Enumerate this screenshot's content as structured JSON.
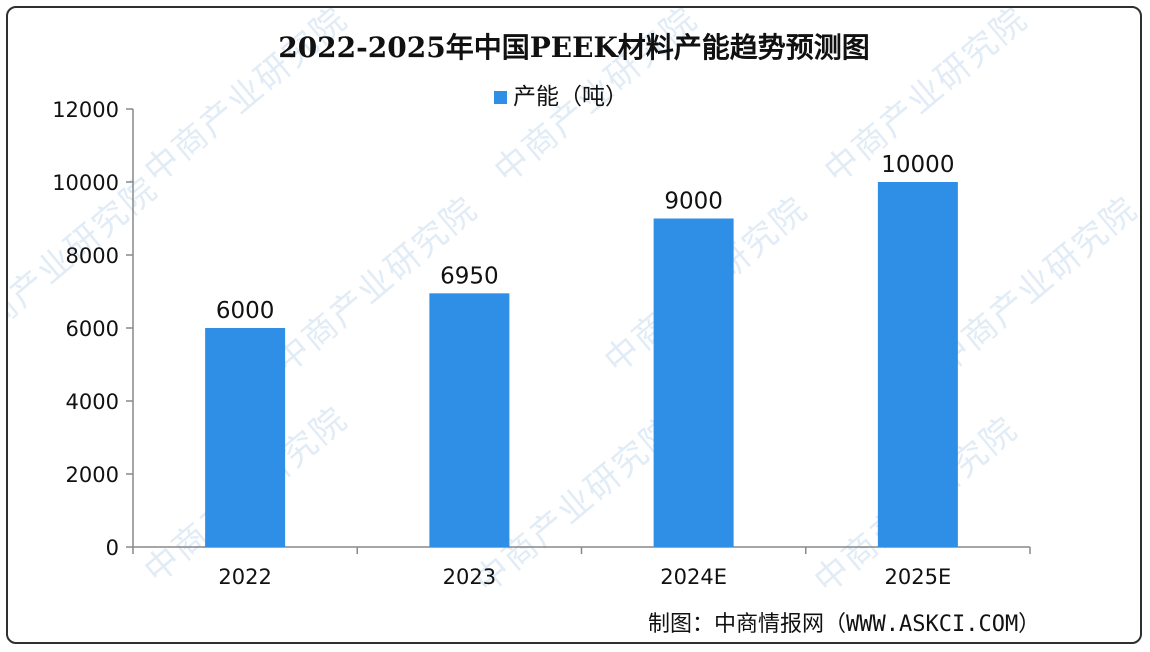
{
  "chart_data": {
    "type": "bar",
    "title": "2022-2025年中国PEEK材料产能趋势预测图",
    "categories": [
      "2022",
      "2023",
      "2024E",
      "2025E"
    ],
    "series": [
      {
        "name": "产能（吨）",
        "values": [
          6000,
          6950,
          9000,
          10000
        ],
        "color": "#2f8fe6"
      }
    ],
    "data_labels": [
      "6000",
      "6950",
      "9000",
      "10000"
    ],
    "ylim": [
      0,
      12000
    ],
    "yticks": [
      0,
      2000,
      4000,
      6000,
      8000,
      10000,
      12000
    ],
    "ytick_labels": [
      "0",
      "2000",
      "4000",
      "6000",
      "8000",
      "10000",
      "12000"
    ],
    "xlabel": "",
    "ylabel": "",
    "grid": false,
    "legend_position": "top-center"
  },
  "source_text": "制图：中商情报网（WWW.ASKCI.COM）",
  "watermark_text": "中商产业研究院",
  "colors": {
    "bar": "#2f8fe6",
    "axis": "#888888",
    "text": "#111111",
    "watermark": "#78aad7"
  }
}
